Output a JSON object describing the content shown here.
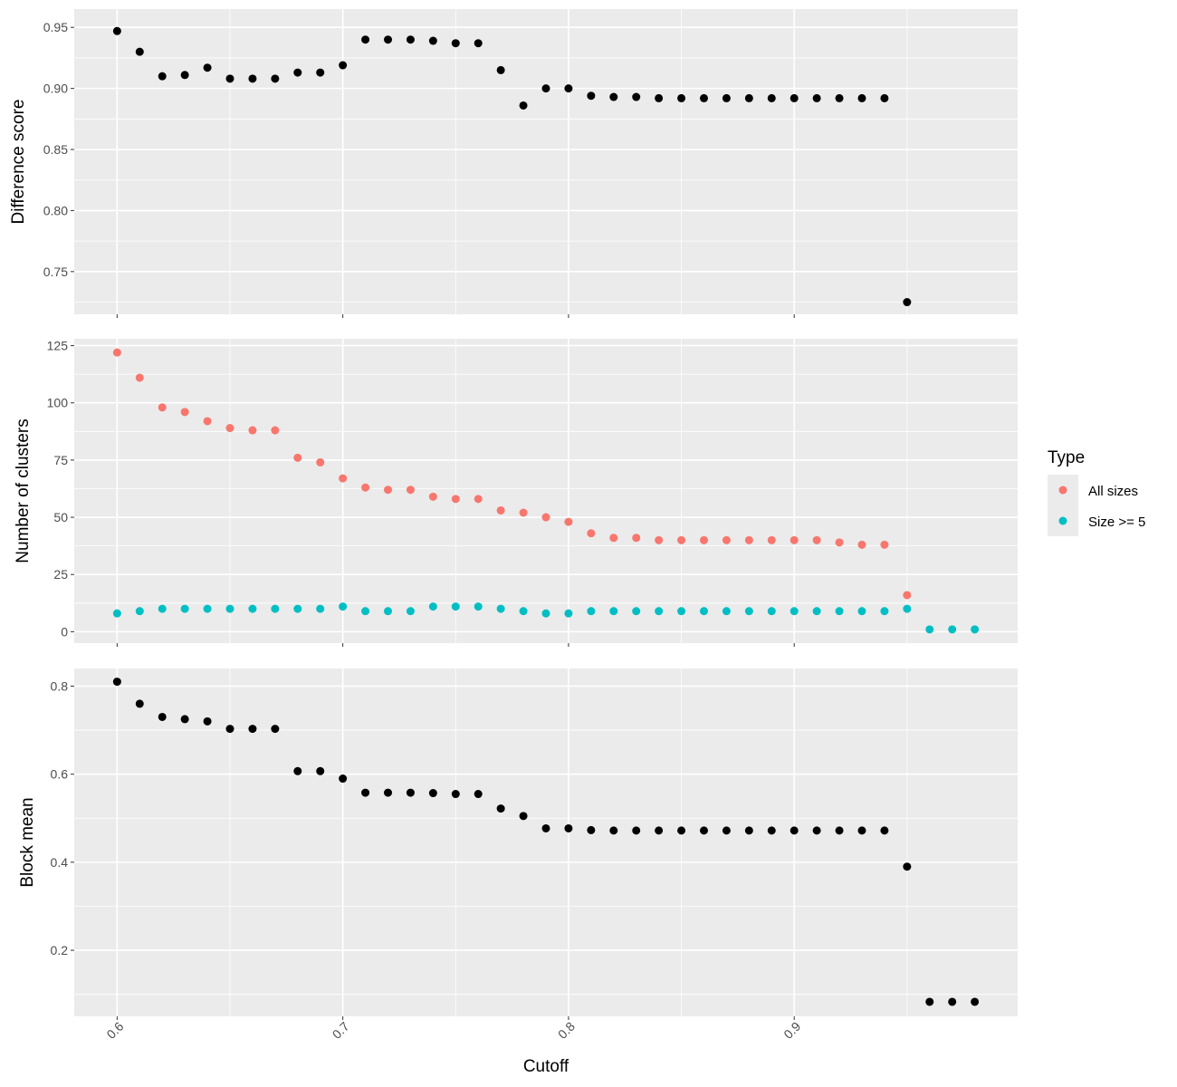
{
  "chart_data": [
    {
      "type": "scatter",
      "ylabel": "Difference score",
      "ylim": [
        0.715,
        0.965
      ],
      "yticks": [
        {
          "value": 0.75,
          "label": "0.75"
        },
        {
          "value": 0.8,
          "label": "0.80"
        },
        {
          "value": 0.85,
          "label": "0.85"
        },
        {
          "value": 0.9,
          "label": "0.90"
        },
        {
          "value": 0.95,
          "label": "0.95"
        }
      ],
      "series": [
        {
          "color": "#000000",
          "x": [
            0.6,
            0.61,
            0.62,
            0.63,
            0.64,
            0.65,
            0.66,
            0.67,
            0.68,
            0.69,
            0.7,
            0.71,
            0.72,
            0.73,
            0.74,
            0.75,
            0.76,
            0.77,
            0.78,
            0.79,
            0.8,
            0.81,
            0.82,
            0.83,
            0.84,
            0.85,
            0.86,
            0.87,
            0.88,
            0.89,
            0.9,
            0.91,
            0.92,
            0.93,
            0.94,
            0.95
          ],
          "y": [
            0.947,
            0.93,
            0.91,
            0.911,
            0.917,
            0.908,
            0.908,
            0.908,
            0.913,
            0.913,
            0.919,
            0.94,
            0.94,
            0.94,
            0.939,
            0.937,
            0.937,
            0.915,
            0.886,
            0.9,
            0.9,
            0.894,
            0.893,
            0.893,
            0.892,
            0.892,
            0.892,
            0.892,
            0.892,
            0.892,
            0.892,
            0.892,
            0.892,
            0.892,
            0.892,
            0.725
          ]
        }
      ]
    },
    {
      "type": "scatter",
      "ylabel": "Number of clusters",
      "ylim": [
        -5,
        128
      ],
      "yticks": [
        {
          "value": 0,
          "label": "0"
        },
        {
          "value": 25,
          "label": "25"
        },
        {
          "value": 50,
          "label": "50"
        },
        {
          "value": 75,
          "label": "75"
        },
        {
          "value": 100,
          "label": "100"
        },
        {
          "value": 125,
          "label": "125"
        }
      ],
      "series": [
        {
          "name": "All sizes",
          "color": "#F8766D",
          "x": [
            0.6,
            0.61,
            0.62,
            0.63,
            0.64,
            0.65,
            0.66,
            0.67,
            0.68,
            0.69,
            0.7,
            0.71,
            0.72,
            0.73,
            0.74,
            0.75,
            0.76,
            0.77,
            0.78,
            0.79,
            0.8,
            0.81,
            0.82,
            0.83,
            0.84,
            0.85,
            0.86,
            0.87,
            0.88,
            0.89,
            0.9,
            0.91,
            0.92,
            0.93,
            0.94,
            0.95
          ],
          "y": [
            122,
            111,
            98,
            96,
            92,
            89,
            88,
            88,
            76,
            74,
            67,
            63,
            62,
            62,
            59,
            58,
            58,
            53,
            52,
            50,
            48,
            43,
            41,
            41,
            40,
            40,
            40,
            40,
            40,
            40,
            40,
            40,
            39,
            38,
            38,
            16
          ]
        },
        {
          "name": "Size >= 5",
          "color": "#00BFC4",
          "x": [
            0.6,
            0.61,
            0.62,
            0.63,
            0.64,
            0.65,
            0.66,
            0.67,
            0.68,
            0.69,
            0.7,
            0.71,
            0.72,
            0.73,
            0.74,
            0.75,
            0.76,
            0.77,
            0.78,
            0.79,
            0.8,
            0.81,
            0.82,
            0.83,
            0.84,
            0.85,
            0.86,
            0.87,
            0.88,
            0.89,
            0.9,
            0.91,
            0.92,
            0.93,
            0.94,
            0.95,
            0.96,
            0.97,
            0.98
          ],
          "y": [
            8,
            9,
            10,
            10,
            10,
            10,
            10,
            10,
            10,
            10,
            11,
            9,
            9,
            9,
            11,
            11,
            11,
            10,
            9,
            8,
            8,
            9,
            9,
            9,
            9,
            9,
            9,
            9,
            9,
            9,
            9,
            9,
            9,
            9,
            9,
            10,
            1,
            1,
            1
          ]
        }
      ],
      "legend": {
        "title": "Type",
        "placement": "right",
        "entries": [
          {
            "label": "All sizes",
            "color": "#F8766D"
          },
          {
            "label": "Size >= 5",
            "color": "#00BFC4"
          }
        ]
      }
    },
    {
      "type": "scatter",
      "ylabel": "Block mean",
      "ylim": [
        0.05,
        0.84
      ],
      "yticks": [
        {
          "value": 0.2,
          "label": "0.2"
        },
        {
          "value": 0.4,
          "label": "0.4"
        },
        {
          "value": 0.6,
          "label": "0.6"
        },
        {
          "value": 0.8,
          "label": "0.8"
        }
      ],
      "series": [
        {
          "color": "#000000",
          "x": [
            0.6,
            0.61,
            0.62,
            0.63,
            0.64,
            0.65,
            0.66,
            0.67,
            0.68,
            0.69,
            0.7,
            0.71,
            0.72,
            0.73,
            0.74,
            0.75,
            0.76,
            0.77,
            0.78,
            0.79,
            0.8,
            0.81,
            0.82,
            0.83,
            0.84,
            0.85,
            0.86,
            0.87,
            0.88,
            0.89,
            0.9,
            0.91,
            0.92,
            0.93,
            0.94,
            0.95,
            0.96,
            0.97,
            0.98
          ],
          "y": [
            0.81,
            0.76,
            0.73,
            0.725,
            0.72,
            0.703,
            0.703,
            0.703,
            0.607,
            0.607,
            0.59,
            0.558,
            0.558,
            0.558,
            0.557,
            0.555,
            0.555,
            0.522,
            0.505,
            0.477,
            0.477,
            0.473,
            0.472,
            0.472,
            0.472,
            0.472,
            0.472,
            0.472,
            0.472,
            0.472,
            0.472,
            0.472,
            0.472,
            0.472,
            0.472,
            0.39,
            0.083,
            0.083,
            0.083
          ]
        }
      ],
      "xlabel": "Cutoff",
      "xticks": [
        {
          "value": 0.6,
          "label": "0.6"
        },
        {
          "value": 0.7,
          "label": "0.7"
        },
        {
          "value": 0.8,
          "label": "0.8"
        },
        {
          "value": 0.9,
          "label": "0.9"
        }
      ]
    }
  ],
  "shared_x": {
    "xlim": [
      0.581,
      0.999
    ],
    "xminor": [
      0.65,
      0.75,
      0.85,
      0.95
    ]
  }
}
